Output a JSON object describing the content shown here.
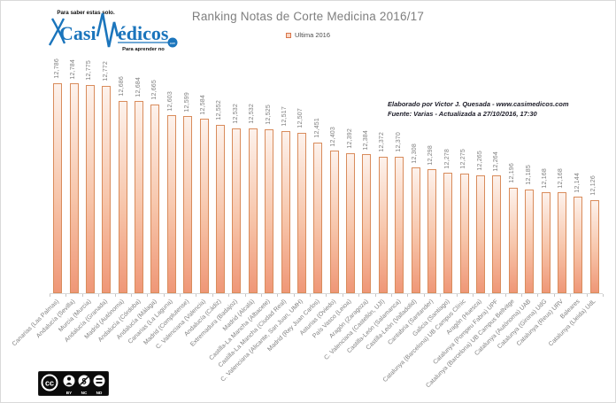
{
  "header": {
    "legend_label": "Ultima 2016",
    "legend_marker_border": "#d9764a"
  },
  "logo": {
    "tagline_top": "Para saber estas solo.",
    "brand_part1": "Casi",
    "brand_part2": "édicos",
    "tagline_bottom": "Para aprender no",
    "domain_dot": "com",
    "brand_color": "#1b75bc"
  },
  "annotation": {
    "line1": "Elaborado por Victor J. Quesada - www.casimedicos.com",
    "line2": "Fuente:  Varias - Actualizada a 27/10/2016, 17:30"
  },
  "license": {
    "cc": "cc",
    "by": "BY",
    "nc": "NC",
    "nd": "ND"
  },
  "chart_data": {
    "type": "bar",
    "title": "Ranking Notas de Corte Medicina 2016/17",
    "legend": [
      "Ultima 2016"
    ],
    "legend_position": "top",
    "grid": false,
    "xlabel": "",
    "ylabel": "",
    "ylim": [
      11.6,
      12.95
    ],
    "bar_fill_top": "#fdf2ec",
    "bar_fill_bottom": "#ef9777",
    "bar_border": "#d98c5c",
    "label_color": "#7f7f7f",
    "categories": [
      "Canarias (Las Palmas)",
      "Andalucía (Sevilla)",
      "Murcia (Murcia)",
      "Andalucía (Granada)",
      "Madrid (Autónoma)",
      "Andalucía (Córdoba)",
      "Andalucía (Málaga)",
      "Canarias (La Laguna)",
      "Madrid (Complutense)",
      "C. Valenciana (Valencia)",
      "Andalucía (Cádiz)",
      "Extremadura (Badajoz)",
      "Madrid (Alcalá)",
      "Castilla-La Mancha (Albacete)",
      "Castilla-La Mancha (Ciudad Real)",
      "C. Valenciana (Alicante, San Juan, UMH)",
      "Madrid (Rey Juan Carlos)",
      "Asturias (Oviedo)",
      "País Vasco (Leioa)",
      "Aragón (Zaragoza)",
      "C. Valenciana (Castellón, UJI)",
      "Castilla-León (Salamanca)",
      "Castilla-León (Valladolid)",
      "Cantabria (Santander)",
      "Galicia (Santiago)",
      "Catalunya (Barcelona) UB Campus Clínic",
      "Aragón (Huesca)",
      "Catalunya (Pompeu Fabra) UPF",
      "Catalunya (Barcelona) UB Campus Bellvitge",
      "Catalunya (Autónoma) UAB",
      "Catalunya (Girona) UdG",
      "Catalunya (Reus) URV",
      "Baleares",
      "Catalunya (Lleida) UdL"
    ],
    "values": [
      12.786,
      12.784,
      12.775,
      12.772,
      12.686,
      12.684,
      12.665,
      12.603,
      12.599,
      12.584,
      12.552,
      12.532,
      12.532,
      12.525,
      12.517,
      12.507,
      12.451,
      12.403,
      12.392,
      12.384,
      12.372,
      12.37,
      12.308,
      12.298,
      12.278,
      12.275,
      12.265,
      12.264,
      12.196,
      12.185,
      12.168,
      12.168,
      12.144,
      12.126
    ],
    "value_labels": [
      "12,786",
      "12,784",
      "12,775",
      "12,772",
      "12,686",
      "12,684",
      "12,665",
      "12,603",
      "12,599",
      "12,584",
      "12,552",
      "12,532",
      "12,532",
      "12,525",
      "12,517",
      "12,507",
      "12,451",
      "12,403",
      "12,392",
      "12,384",
      "12,372",
      "12,370",
      "12,308",
      "12,298",
      "12,278",
      "12,275",
      "12,265",
      "12,264",
      "12,196",
      "12,185",
      "12,168",
      "12,168",
      "12,144",
      "12,126"
    ]
  }
}
